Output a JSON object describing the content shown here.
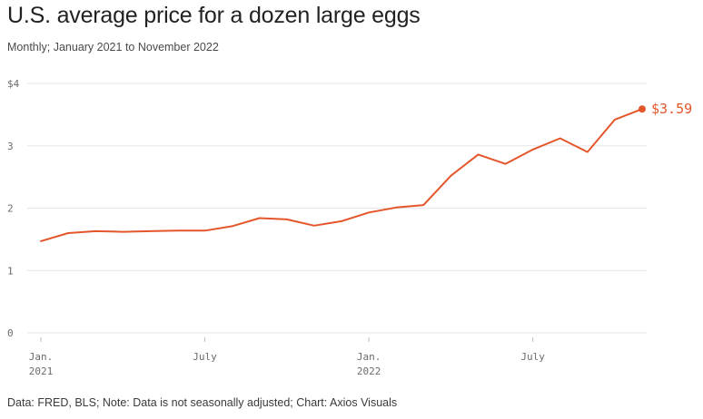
{
  "title": "U.S. average price for a dozen large eggs",
  "subtitle": "Monthly; January 2021 to November 2022",
  "source": "Data: FRED, BLS; Note: Data is not seasonally adjusted; Chart: Axios Visuals",
  "colors": {
    "line": "#e4562a",
    "grid": "#e6e6e6",
    "tick_text": "#6b6b6b"
  },
  "chart_data": {
    "type": "line",
    "title": "U.S. average price for a dozen large eggs",
    "subtitle": "Monthly; January 2021 to November 2022",
    "xlabel": "",
    "ylabel": "",
    "ylim": [
      0,
      4
    ],
    "grid": true,
    "x": [
      "2021-01",
      "2021-02",
      "2021-03",
      "2021-04",
      "2021-05",
      "2021-06",
      "2021-07",
      "2021-08",
      "2021-09",
      "2021-10",
      "2021-11",
      "2021-12",
      "2022-01",
      "2022-02",
      "2022-03",
      "2022-04",
      "2022-05",
      "2022-06",
      "2022-07",
      "2022-08",
      "2022-09",
      "2022-10",
      "2022-11"
    ],
    "series": [
      {
        "name": "Average price, dozen large eggs",
        "values": [
          1.47,
          1.6,
          1.63,
          1.62,
          1.63,
          1.64,
          1.64,
          1.71,
          1.84,
          1.82,
          1.72,
          1.79,
          1.93,
          2.01,
          2.05,
          2.52,
          2.86,
          2.71,
          2.94,
          3.12,
          2.9,
          3.42,
          3.59
        ]
      }
    ],
    "y_ticks": [
      {
        "value": 4,
        "label": "$4"
      },
      {
        "value": 3,
        "label": "3"
      },
      {
        "value": 2,
        "label": "2"
      },
      {
        "value": 1,
        "label": "1"
      },
      {
        "value": 0,
        "label": "0"
      }
    ],
    "x_ticks": [
      {
        "index": 0,
        "label": "Jan.",
        "sublabel": "2021"
      },
      {
        "index": 6,
        "label": "July",
        "sublabel": ""
      },
      {
        "index": 12,
        "label": "Jan.",
        "sublabel": "2022"
      },
      {
        "index": 18,
        "label": "July",
        "sublabel": ""
      }
    ],
    "end_label": "$3.59"
  }
}
